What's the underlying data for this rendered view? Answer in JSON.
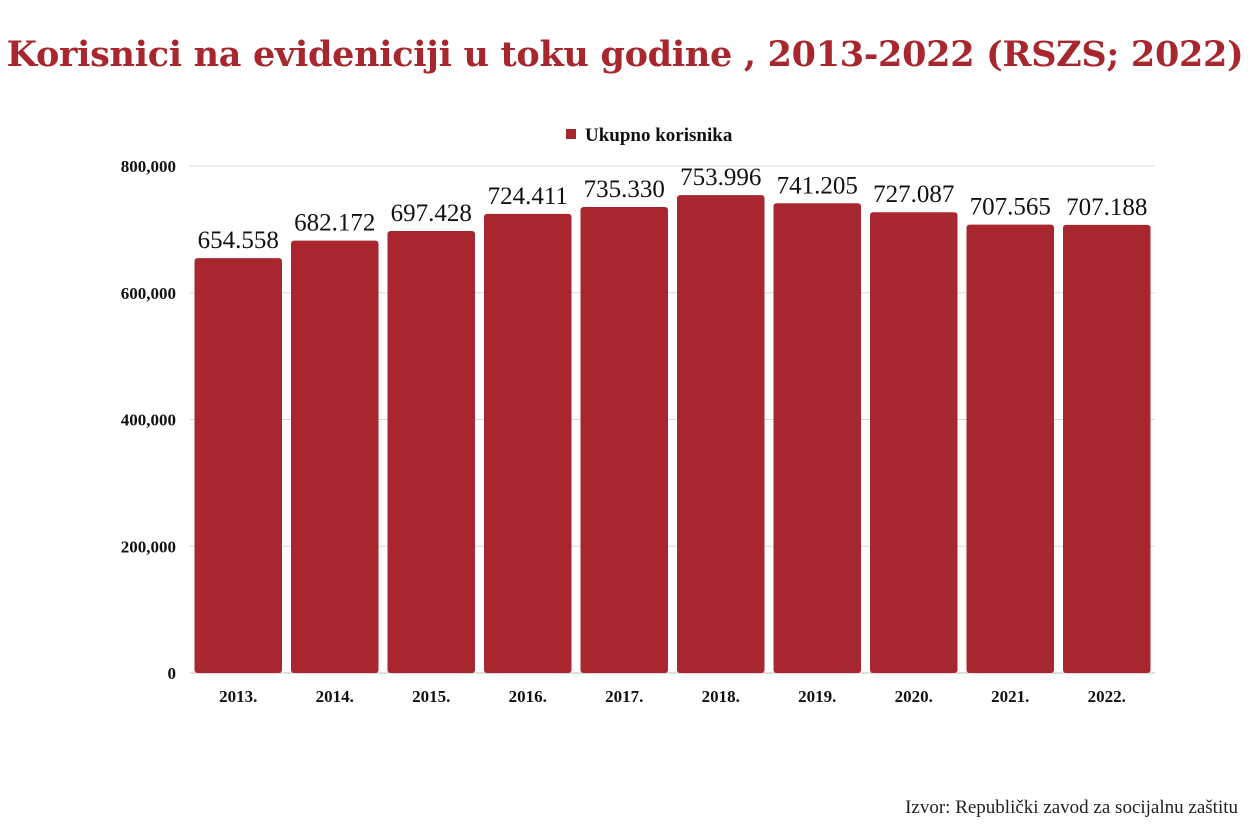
{
  "chart_data": {
    "type": "bar",
    "title": "Korisnici na evideniciji u toku godine , 2013-2022 (RSZS; 2022)",
    "categories": [
      "2013.",
      "2014.",
      "2015.",
      "2016.",
      "2017.",
      "2018.",
      "2019.",
      "2020.",
      "2021.",
      "2022."
    ],
    "series": [
      {
        "name": "Ukupno korisnika",
        "values": [
          654558,
          682172,
          697428,
          724411,
          735330,
          753996,
          741205,
          727087,
          707565,
          707188
        ],
        "labels": [
          "654.558",
          "682.172",
          "697.428",
          "724.411",
          "735.330",
          "753.996",
          "741.205",
          "727.087",
          "707.565",
          "707.188"
        ],
        "color": "#a8262d"
      }
    ],
    "ylim": [
      0,
      800000
    ],
    "yticks": [
      0,
      200000,
      400000,
      600000,
      800000
    ],
    "ytick_labels": [
      "0",
      "200,000",
      "400,000",
      "600,000",
      "800,000"
    ],
    "grid": true,
    "legend_position": "top-center",
    "source": "Izvor: Republički zavod za socijalnu zaštitu"
  }
}
